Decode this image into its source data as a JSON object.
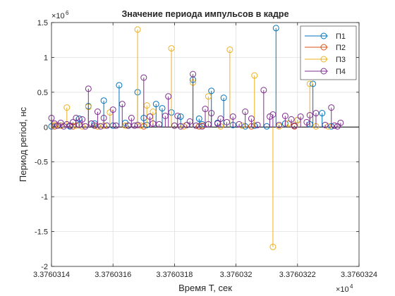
{
  "chart_data": {
    "type": "stem",
    "title": "Значение периода импульсов в кадре",
    "xlabel": "Время T, сек",
    "ylabel": "Период period, нс",
    "x_multiplier_label": "×10",
    "x_multiplier_exp": "4",
    "y_multiplier_label": "×10",
    "y_multiplier_exp": "6",
    "xlim": [
      3.3760314,
      3.3760324
    ],
    "ylim": [
      -2,
      1.5
    ],
    "x_ticks": [
      3.3760314,
      3.3760316,
      3.3760318,
      3.376032,
      3.3760322,
      3.3760324
    ],
    "x_tick_labels": [
      "3.3760314",
      "3.3760316",
      "3.3760318",
      "3.376032",
      "3.3760322",
      "3.3760324"
    ],
    "y_ticks": [
      -2,
      -1.5,
      -1,
      -0.5,
      0,
      0.5,
      1,
      1.5
    ],
    "y_tick_labels": [
      "-2",
      "-1.5",
      "-1",
      "-0.5",
      "0",
      "0.5",
      "1",
      "1.5"
    ],
    "grid": true,
    "legend_position": "top-right",
    "series": [
      {
        "name": "П1",
        "color": "#0072BD",
        "x": [
          3.3760314,
          3.37603143,
          3.37603146,
          3.37603149,
          3.37603152,
          3.37603154,
          3.37603157,
          3.3760316,
          3.37603162,
          3.37603164,
          3.37603165,
          3.37603168,
          3.3760317,
          3.37603171,
          3.37603174,
          3.37603176,
          3.37603179,
          3.37603182,
          3.37603186,
          3.37603188,
          3.37603189,
          3.37603192,
          3.37603194,
          3.37603196,
          3.37603199,
          3.37603203,
          3.37603206,
          3.3760321,
          3.37603213,
          3.37603216,
          3.3760322,
          3.37603224,
          3.37603225,
          3.37603228,
          3.37603231
        ],
        "y": [
          0.01,
          0.02,
          0.01,
          0.12,
          0.3,
          0.05,
          0.38,
          0.02,
          0.6,
          0.06,
          0.02,
          0.5,
          0.13,
          0.03,
          0.33,
          0.27,
          0.21,
          0.15,
          0.68,
          0.12,
          0.04,
          0.52,
          0.06,
          0.42,
          0.03,
          0.01,
          0.02,
          0.01,
          1.42,
          0.05,
          0.1,
          0.04,
          0.62,
          0.2,
          0.01
        ]
      },
      {
        "name": "П2",
        "color": "#D95319",
        "x": [
          3.37603141,
          3.37603147,
          3.37603155,
          3.3760317,
          3.37603188,
          3.37603205,
          3.37603219
        ],
        "y": [
          0.01,
          0.01,
          0.01,
          0.01,
          0.01,
          0.01,
          0.01
        ]
      },
      {
        "name": "П3",
        "color": "#EDB120",
        "x": [
          3.37603141,
          3.37603143,
          3.37603145,
          3.37603148,
          3.3760315,
          3.37603152,
          3.37603155,
          3.37603157,
          3.37603159,
          3.37603164,
          3.37603168,
          3.37603169,
          3.37603171,
          3.37603173,
          3.37603179,
          3.3760318,
          3.37603183,
          3.37603186,
          3.37603189,
          3.37603191,
          3.37603195,
          3.37603198,
          3.37603202,
          3.37603206,
          3.37603212,
          3.37603214,
          3.37603217,
          3.3760322,
          3.37603224,
          3.37603226,
          3.3760323
        ],
        "y": [
          0.03,
          0.02,
          0.28,
          0.02,
          0.01,
          0.29,
          0.01,
          0.02,
          0.21,
          0.02,
          1.4,
          0.02,
          0.31,
          0.22,
          1.13,
          0.02,
          0.01,
          0.64,
          0.02,
          0.44,
          0.01,
          1.11,
          0.02,
          0.74,
          -1.72,
          0.01,
          0.05,
          0.1,
          0.62,
          0.01,
          0.01
        ]
      },
      {
        "name": "П4",
        "color": "#7E2F8E",
        "x": [
          3.3760314,
          3.37603141,
          3.37603142,
          3.37603143,
          3.37603144,
          3.37603145,
          3.37603146,
          3.37603147,
          3.37603148,
          3.37603149,
          3.3760315,
          3.37603151,
          3.37603152,
          3.37603153,
          3.37603154,
          3.37603155,
          3.37603156,
          3.37603157,
          3.37603158,
          3.3760316,
          3.37603161,
          3.37603163,
          3.37603165,
          3.37603166,
          3.37603167,
          3.37603168,
          3.3760317,
          3.37603172,
          3.37603173,
          3.37603175,
          3.37603177,
          3.37603178,
          3.3760318,
          3.37603181,
          3.37603182,
          3.37603184,
          3.37603185,
          3.37603186,
          3.37603187,
          3.37603189,
          3.3760319,
          3.37603191,
          3.37603192,
          3.37603194,
          3.37603195,
          3.37603197,
          3.37603199,
          3.37603201,
          3.37603203,
          3.37603205,
          3.37603207,
          3.37603209,
          3.37603211,
          3.37603212,
          3.37603214,
          3.37603216,
          3.37603218,
          3.37603219,
          3.37603221,
          3.37603223,
          3.37603224,
          3.37603226,
          3.37603229,
          3.37603231,
          3.37603232,
          3.37603233,
          3.37603234
        ],
        "y": [
          0.13,
          0.05,
          0.02,
          0.06,
          0.01,
          0.04,
          0.02,
          0.07,
          0.13,
          0.03,
          0.11,
          0.01,
          0.55,
          0.05,
          0.02,
          0.22,
          0.01,
          0.13,
          0.02,
          0.25,
          0.02,
          0.33,
          0.02,
          0.13,
          0.02,
          0.03,
          0.71,
          0.15,
          0.05,
          0.04,
          0.16,
          0.44,
          0.02,
          0.16,
          0.01,
          0.03,
          0.08,
          0.76,
          0.02,
          0.01,
          0.26,
          0.04,
          0.2,
          0.05,
          0.12,
          0.07,
          0.15,
          0.04,
          0.22,
          0.12,
          0.03,
          0.53,
          0.15,
          0.18,
          0.03,
          0.16,
          0.11,
          0.02,
          0.15,
          0.07,
          0.17,
          0.2,
          0.03,
          0.28,
          0.02,
          0.01,
          0.06
        ]
      }
    ]
  }
}
